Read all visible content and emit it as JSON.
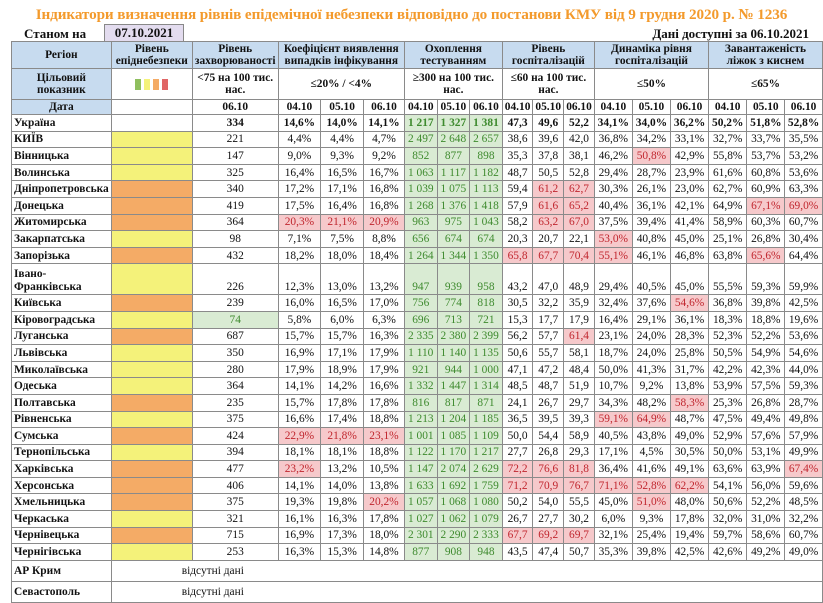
{
  "title": "Індикатори визначення рівнів епідемічної небезпеки відповідно до постанови КМУ від 9 грудня 2020 р. № 1236",
  "as_of_label": "Станом на",
  "as_of_date": "07.10.2021",
  "data_available": "Дані доступні за  06.10.2021",
  "colors": {
    "title": "#f39a2c",
    "level_green": "#8fbf5e",
    "level_yellow": "#f4f27a",
    "level_orange": "#f4ab66",
    "level_red": "#e06666",
    "good_bg": "#d9ebd3",
    "bad_bg": "#f6c9cb",
    "header_bg": "#c7dbef"
  },
  "header": {
    "region": "Регіон",
    "epi_level": "Рівень епіднебезпеки",
    "incidence": "Рівень захворюваності",
    "positivity": "Коефіцієнт виявлення випадків інфікування",
    "testing": "Охоплення тестуванням",
    "hospitalization": "Рівень госпіталізацій",
    "hosp_dynamics": "Динаміка рівня госпіталізацій",
    "oxygen_beds": "Завантаженість ліжок з киснем"
  },
  "targets": {
    "label": "Цільовий показник",
    "epi_level_legend": [
      "green",
      "yellow",
      "orange",
      "red"
    ],
    "incidence": "<75 на 100 тис. нас.",
    "positivity": "≤20% / <4%",
    "testing": "≥300 на 100 тис. нас.",
    "hospitalization": "≤60 на 100 тис. нас.",
    "hosp_dynamics": "≤50%",
    "oxygen_beds": "≤65%"
  },
  "dates": {
    "label": "Дата",
    "incidence": "06.10",
    "d1": "04.10",
    "d2": "05.10",
    "d3": "06.10"
  },
  "rows": [
    {
      "region": "Україна",
      "level": "",
      "incidence": "334",
      "pos": [
        "14,6%",
        "14,0%",
        "14,1%"
      ],
      "test": [
        "1 217",
        "1 327",
        "1 381"
      ],
      "hosp": [
        "47,3",
        "49,6",
        "52,2"
      ],
      "dyn": [
        "34,1%",
        "34,0%",
        "36,2%"
      ],
      "beds": [
        "50,2%",
        "51,8%",
        "52,8%"
      ]
    },
    {
      "region": "КИЇВ",
      "level": "yellow",
      "incidence": "221",
      "pos": [
        "4,4%",
        "4,4%",
        "4,7%"
      ],
      "test": [
        "2 497",
        "2 648",
        "2 657"
      ],
      "hosp": [
        "38,6",
        "39,6",
        "42,0"
      ],
      "dyn": [
        "36,8%",
        "34,2%",
        "33,1%"
      ],
      "beds": [
        "32,7%",
        "33,7%",
        "35,5%"
      ]
    },
    {
      "region": "Вінницька",
      "level": "yellow",
      "incidence": "147",
      "pos": [
        "9,0%",
        "9,3%",
        "9,2%"
      ],
      "test": [
        "852",
        "877",
        "898"
      ],
      "hosp": [
        "35,3",
        "37,8",
        "38,1"
      ],
      "dyn": [
        "46,2%",
        "50,8%",
        "42,9%"
      ],
      "beds": [
        "55,8%",
        "53,7%",
        "53,2%"
      ]
    },
    {
      "region": "Волинська",
      "level": "yellow",
      "incidence": "325",
      "pos": [
        "16,4%",
        "16,5%",
        "16,7%"
      ],
      "test": [
        "1 063",
        "1 117",
        "1 182"
      ],
      "hosp": [
        "48,7",
        "50,5",
        "52,8"
      ],
      "dyn": [
        "29,4%",
        "28,7%",
        "23,9%"
      ],
      "beds": [
        "61,6%",
        "60,8%",
        "53,6%"
      ]
    },
    {
      "region": "Дніпропетровська",
      "level": "orange",
      "incidence": "340",
      "pos": [
        "17,2%",
        "17,1%",
        "16,8%"
      ],
      "test": [
        "1 039",
        "1 075",
        "1 113"
      ],
      "hosp": [
        "59,4",
        "61,2",
        "62,7"
      ],
      "dyn": [
        "30,3%",
        "26,1%",
        "23,0%"
      ],
      "beds": [
        "62,7%",
        "60,9%",
        "63,3%"
      ]
    },
    {
      "region": "Донецька",
      "level": "orange",
      "incidence": "419",
      "pos": [
        "17,5%",
        "16,4%",
        "16,8%"
      ],
      "test": [
        "1 268",
        "1 376",
        "1 418"
      ],
      "hosp": [
        "57,9",
        "61,6",
        "65,2"
      ],
      "dyn": [
        "40,4%",
        "36,1%",
        "42,1%"
      ],
      "beds": [
        "64,9%",
        "67,1%",
        "69,0%"
      ]
    },
    {
      "region": "Житомирська",
      "level": "orange",
      "incidence": "364",
      "pos": [
        "20,3%",
        "21,1%",
        "20,9%"
      ],
      "test": [
        "963",
        "975",
        "1 043"
      ],
      "hosp": [
        "58,2",
        "63,2",
        "67,0"
      ],
      "dyn": [
        "37,5%",
        "39,4%",
        "41,4%"
      ],
      "beds": [
        "58,9%",
        "60,3%",
        "60,7%"
      ]
    },
    {
      "region": "Закарпатська",
      "level": "yellow",
      "incidence": "98",
      "pos": [
        "7,1%",
        "7,5%",
        "8,8%"
      ],
      "test": [
        "656",
        "674",
        "674"
      ],
      "hosp": [
        "20,3",
        "20,7",
        "22,1"
      ],
      "dyn": [
        "53,0%",
        "40,8%",
        "45,0%"
      ],
      "beds": [
        "25,1%",
        "26,8%",
        "30,4%"
      ]
    },
    {
      "region": "Запорізька",
      "level": "orange",
      "incidence": "432",
      "pos": [
        "18,2%",
        "18,0%",
        "18,4%"
      ],
      "test": [
        "1 264",
        "1 344",
        "1 350"
      ],
      "hosp": [
        "65,8",
        "67,7",
        "70,4"
      ],
      "dyn": [
        "55,1%",
        "46,1%",
        "46,8%"
      ],
      "beds": [
        "63,8%",
        "65,6%",
        "64,4%"
      ]
    },
    {
      "region": "Івано-Франківська",
      "level": "yellow",
      "incidence": "226",
      "pos": [
        "12,3%",
        "13,0%",
        "13,2%"
      ],
      "test": [
        "947",
        "939",
        "958"
      ],
      "hosp": [
        "43,2",
        "47,0",
        "48,9"
      ],
      "dyn": [
        "29,4%",
        "40,5%",
        "45,0%"
      ],
      "beds": [
        "55,5%",
        "59,3%",
        "59,9%"
      ]
    },
    {
      "region": "Київська",
      "level": "orange",
      "incidence": "239",
      "pos": [
        "16,0%",
        "16,5%",
        "17,0%"
      ],
      "test": [
        "756",
        "774",
        "818"
      ],
      "hosp": [
        "30,5",
        "32,2",
        "35,9"
      ],
      "dyn": [
        "32,4%",
        "37,6%",
        "54,6%"
      ],
      "beds": [
        "36,8%",
        "39,8%",
        "42,5%"
      ]
    },
    {
      "region": "Кіровоградська",
      "level": "yellow",
      "incidence": "74",
      "pos": [
        "5,8%",
        "6,0%",
        "6,3%"
      ],
      "test": [
        "696",
        "713",
        "721"
      ],
      "hosp": [
        "15,3",
        "17,7",
        "17,9"
      ],
      "dyn": [
        "16,4%",
        "29,1%",
        "36,1%"
      ],
      "beds": [
        "18,3%",
        "18,8%",
        "19,6%"
      ]
    },
    {
      "region": "Луганська",
      "level": "orange",
      "incidence": "687",
      "pos": [
        "15,7%",
        "15,7%",
        "16,3%"
      ],
      "test": [
        "2 335",
        "2 380",
        "2 399"
      ],
      "hosp": [
        "56,2",
        "57,7",
        "61,4"
      ],
      "dyn": [
        "23,1%",
        "24,0%",
        "28,3%"
      ],
      "beds": [
        "52,3%",
        "52,2%",
        "53,6%"
      ]
    },
    {
      "region": "Львівська",
      "level": "yellow",
      "incidence": "350",
      "pos": [
        "16,9%",
        "17,1%",
        "17,9%"
      ],
      "test": [
        "1 110",
        "1 140",
        "1 135"
      ],
      "hosp": [
        "50,6",
        "55,7",
        "58,1"
      ],
      "dyn": [
        "18,7%",
        "24,0%",
        "25,8%"
      ],
      "beds": [
        "50,5%",
        "54,9%",
        "54,6%"
      ]
    },
    {
      "region": "Миколаївська",
      "level": "yellow",
      "incidence": "280",
      "pos": [
        "17,9%",
        "18,9%",
        "17,9%"
      ],
      "test": [
        "921",
        "944",
        "1 000"
      ],
      "hosp": [
        "47,1",
        "47,2",
        "48,4"
      ],
      "dyn": [
        "50,0%",
        "41,3%",
        "31,7%"
      ],
      "beds": [
        "42,2%",
        "42,3%",
        "44,0%"
      ]
    },
    {
      "region": "Одеська",
      "level": "yellow",
      "incidence": "364",
      "pos": [
        "14,1%",
        "14,2%",
        "16,6%"
      ],
      "test": [
        "1 332",
        "1 447",
        "1 314"
      ],
      "hosp": [
        "48,5",
        "48,7",
        "51,9"
      ],
      "dyn": [
        "10,7%",
        "9,2%",
        "13,8%"
      ],
      "beds": [
        "53,9%",
        "57,5%",
        "59,3%"
      ]
    },
    {
      "region": "Полтавська",
      "level": "orange",
      "incidence": "235",
      "pos": [
        "15,7%",
        "17,8%",
        "17,8%"
      ],
      "test": [
        "816",
        "817",
        "871"
      ],
      "hosp": [
        "24,1",
        "26,7",
        "29,7"
      ],
      "dyn": [
        "34,3%",
        "48,2%",
        "58,3%"
      ],
      "beds": [
        "25,3%",
        "26,8%",
        "28,7%"
      ]
    },
    {
      "region": "Рівненська",
      "level": "yellow",
      "incidence": "375",
      "pos": [
        "16,6%",
        "17,4%",
        "18,8%"
      ],
      "test": [
        "1 213",
        "1 204",
        "1 185"
      ],
      "hosp": [
        "36,5",
        "39,5",
        "39,3"
      ],
      "dyn": [
        "59,1%",
        "64,9%",
        "48,7%"
      ],
      "beds": [
        "47,5%",
        "49,4%",
        "49,8%"
      ]
    },
    {
      "region": "Сумська",
      "level": "orange",
      "incidence": "424",
      "pos": [
        "22,9%",
        "21,8%",
        "23,1%"
      ],
      "test": [
        "1 001",
        "1 085",
        "1 109"
      ],
      "hosp": [
        "50,0",
        "54,4",
        "58,9"
      ],
      "dyn": [
        "40,5%",
        "43,8%",
        "49,0%"
      ],
      "beds": [
        "52,9%",
        "57,6%",
        "57,9%"
      ]
    },
    {
      "region": "Тернопільська",
      "level": "yellow",
      "incidence": "394",
      "pos": [
        "18,1%",
        "18,1%",
        "18,8%"
      ],
      "test": [
        "1 122",
        "1 170",
        "1 217"
      ],
      "hosp": [
        "27,7",
        "26,8",
        "29,3"
      ],
      "dyn": [
        "17,1%",
        "4,5%",
        "30,5%"
      ],
      "beds": [
        "50,0%",
        "53,1%",
        "49,9%"
      ]
    },
    {
      "region": "Харківська",
      "level": "orange",
      "incidence": "477",
      "pos": [
        "23,2%",
        "13,2%",
        "10,5%"
      ],
      "test": [
        "1 147",
        "2 074",
        "2 629"
      ],
      "hosp": [
        "72,2",
        "76,6",
        "81,8"
      ],
      "dyn": [
        "36,4%",
        "41,6%",
        "49,1%"
      ],
      "beds": [
        "63,6%",
        "63,9%",
        "67,4%"
      ]
    },
    {
      "region": "Херсонська",
      "level": "orange",
      "incidence": "406",
      "pos": [
        "14,1%",
        "14,0%",
        "13,8%"
      ],
      "test": [
        "1 633",
        "1 692",
        "1 759"
      ],
      "hosp": [
        "71,2",
        "70,9",
        "76,7"
      ],
      "dyn": [
        "71,1%",
        "52,8%",
        "62,2%"
      ],
      "beds": [
        "54,1%",
        "56,0%",
        "59,6%"
      ]
    },
    {
      "region": "Хмельницька",
      "level": "orange",
      "incidence": "375",
      "pos": [
        "19,3%",
        "19,8%",
        "20,2%"
      ],
      "test": [
        "1 057",
        "1 068",
        "1 080"
      ],
      "hosp": [
        "50,2",
        "54,0",
        "55,5"
      ],
      "dyn": [
        "45,0%",
        "51,0%",
        "48,0%"
      ],
      "beds": [
        "50,6%",
        "52,2%",
        "48,5%"
      ]
    },
    {
      "region": "Черкаська",
      "level": "yellow",
      "incidence": "321",
      "pos": [
        "16,1%",
        "16,3%",
        "17,8%"
      ],
      "test": [
        "1 027",
        "1 062",
        "1 079"
      ],
      "hosp": [
        "26,7",
        "27,7",
        "30,2"
      ],
      "dyn": [
        "6,0%",
        "9,3%",
        "17,8%"
      ],
      "beds": [
        "32,0%",
        "31,0%",
        "32,2%"
      ]
    },
    {
      "region": "Чернівецька",
      "level": "orange",
      "incidence": "715",
      "pos": [
        "16,9%",
        "17,3%",
        "18,0%"
      ],
      "test": [
        "2 301",
        "2 290",
        "2 333"
      ],
      "hosp": [
        "67,7",
        "69,2",
        "69,7"
      ],
      "dyn": [
        "32,1%",
        "25,4%",
        "19,4%"
      ],
      "beds": [
        "59,7%",
        "58,6%",
        "60,7%"
      ]
    },
    {
      "region": "Чернігівська",
      "level": "yellow",
      "incidence": "253",
      "pos": [
        "16,3%",
        "15,3%",
        "14,8%"
      ],
      "test": [
        "877",
        "908",
        "948"
      ],
      "hosp": [
        "43,5",
        "47,4",
        "50,7"
      ],
      "dyn": [
        "35,3%",
        "39,8%",
        "42,5%"
      ],
      "beds": [
        "42,6%",
        "49,2%",
        "49,0%"
      ]
    }
  ],
  "missing_rows": [
    {
      "region": "АР Крим",
      "text": "відсутні дані"
    },
    {
      "region": "Севастополь",
      "text": "відсутні дані"
    }
  ]
}
